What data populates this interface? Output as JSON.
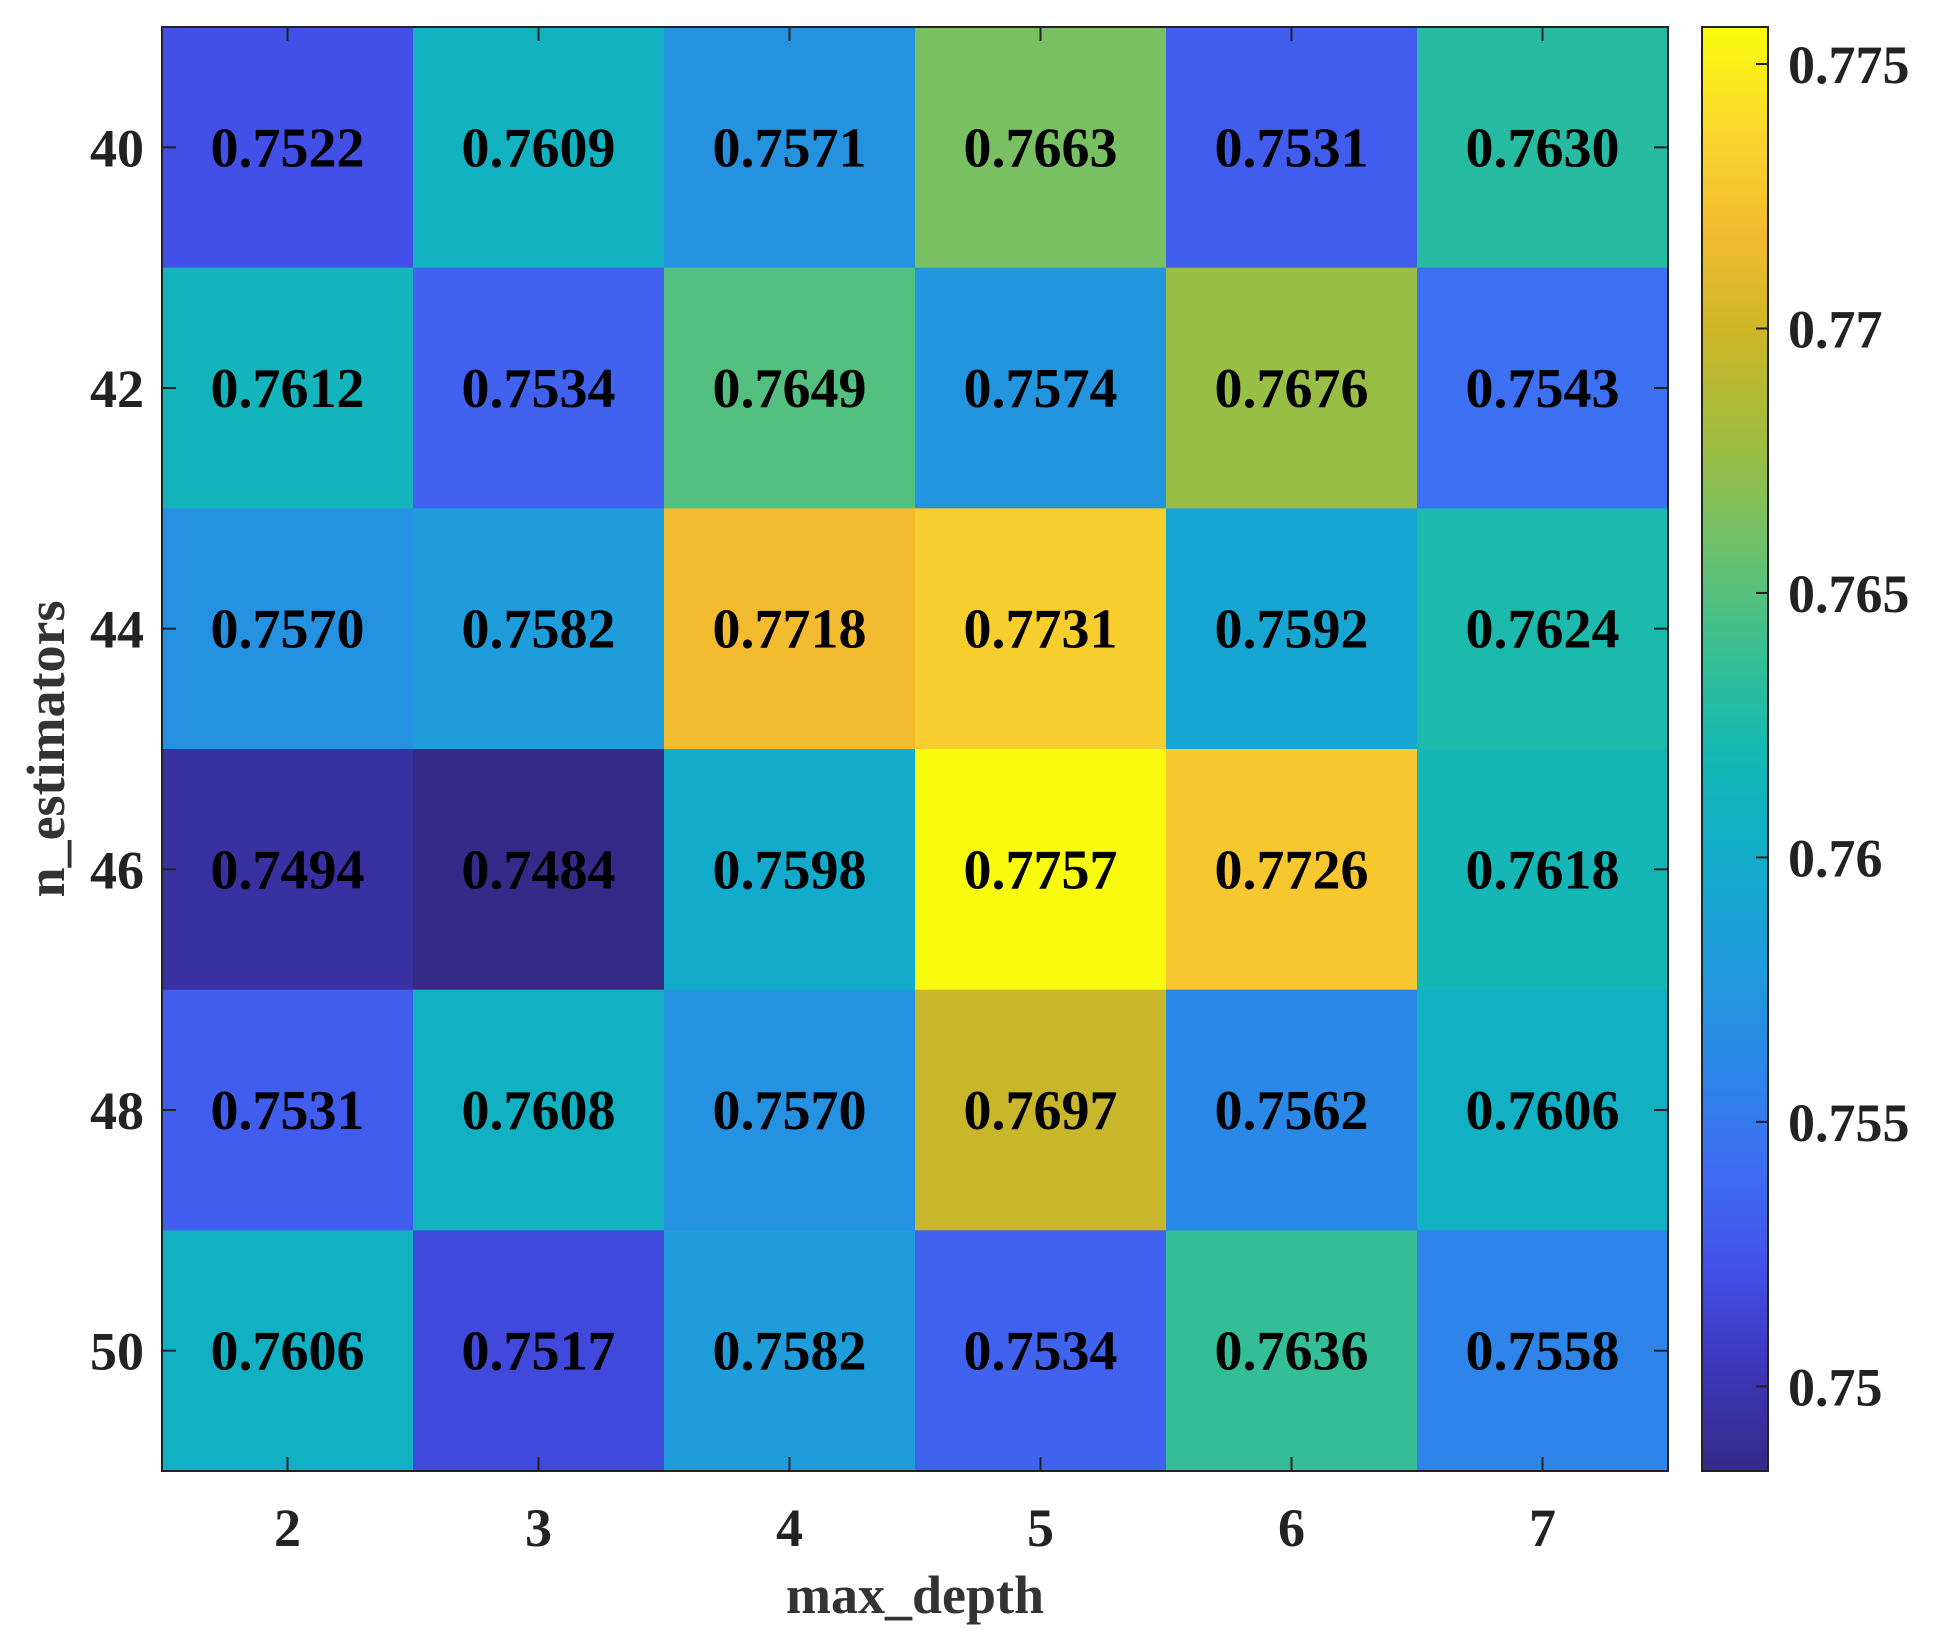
{
  "chart_data": {
    "type": "heatmap",
    "title": "",
    "xlabel": "max_depth",
    "ylabel": "n_estimators",
    "x": [
      "2",
      "3",
      "4",
      "5",
      "6",
      "7"
    ],
    "y": [
      "40",
      "42",
      "44",
      "46",
      "48",
      "50"
    ],
    "values": [
      [
        0.7522,
        0.7609,
        0.7571,
        0.7663,
        0.7531,
        0.763
      ],
      [
        0.7612,
        0.7534,
        0.7649,
        0.7574,
        0.7676,
        0.7543
      ],
      [
        0.757,
        0.7582,
        0.7718,
        0.7731,
        0.7592,
        0.7624
      ],
      [
        0.7494,
        0.7484,
        0.7598,
        0.7757,
        0.7726,
        0.7618
      ],
      [
        0.7531,
        0.7608,
        0.757,
        0.7697,
        0.7562,
        0.7606
      ],
      [
        0.7606,
        0.7517,
        0.7582,
        0.7534,
        0.7636,
        0.7558
      ]
    ],
    "value_labels": [
      [
        "0.7522",
        "0.7609",
        "0.7571",
        "0.7663",
        "0.7531",
        "0.7630"
      ],
      [
        "0.7612",
        "0.7534",
        "0.7649",
        "0.7574",
        "0.7676",
        "0.7543"
      ],
      [
        "0.7570",
        "0.7582",
        "0.7718",
        "0.7731",
        "0.7592",
        "0.7624"
      ],
      [
        "0.7494",
        "0.7484",
        "0.7598",
        "0.7757",
        "0.7726",
        "0.7618"
      ],
      [
        "0.7531",
        "0.7608",
        "0.7570",
        "0.7697",
        "0.7562",
        "0.7606"
      ],
      [
        "0.7606",
        "0.7517",
        "0.7582",
        "0.7534",
        "0.7636",
        "0.7558"
      ]
    ],
    "colorbar": {
      "min": 0.7484,
      "max": 0.7757,
      "ticks": [
        0.75,
        0.755,
        0.76,
        0.765,
        0.77,
        0.775
      ],
      "tick_labels": [
        "0.75",
        "0.755",
        "0.76",
        "0.765",
        "0.77",
        "0.775"
      ],
      "colormap": "parula",
      "placement": "right"
    },
    "colormap_stops": [
      "#352a87",
      "#3d36ba",
      "#4351eb",
      "#3d6ff2",
      "#2a89e6",
      "#1f9dda",
      "#11adc9",
      "#14b9b2",
      "#3bbf91",
      "#6fc16a",
      "#a0bd3f",
      "#cbb628",
      "#f3bb2f",
      "#fad82d",
      "#f9fb0e"
    ]
  }
}
